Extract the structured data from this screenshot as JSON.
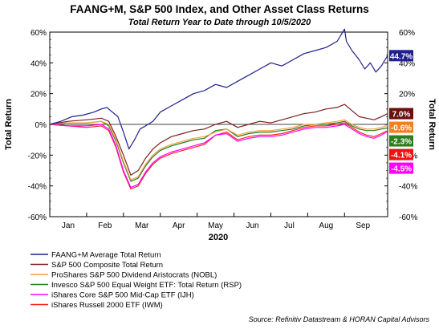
{
  "chart_data": {
    "type": "line",
    "title": "FAANG+M, S&P 500 Index, and Other Asset Class Returns",
    "subtitle": "Total Return Year to Date through 10/5/2020",
    "xlabel": "2020",
    "ylabel_left": "Total Return",
    "ylabel_right": "Total Return",
    "ylim": [
      -60,
      60
    ],
    "yticks": [
      "60%",
      "40%",
      "20%",
      "0%",
      "-20%",
      "-40%",
      "-60%"
    ],
    "yticks_right": [
      "60%",
      "40%",
      "20%",
      "0%",
      "-20%",
      "-40%",
      "-60%"
    ],
    "xlim": [
      0,
      9.17
    ],
    "x_months": [
      "Jan",
      "Feb",
      "Mar",
      "Apr",
      "May",
      "Jun",
      "Jul",
      "Aug",
      "Sep"
    ],
    "grid": false,
    "legend_position": "bottom-left",
    "source": "Source: Refinitiv Datastream & HORAN Capital Advisors",
    "series": [
      {
        "name": "FAANG+M Average Total Return",
        "color": "#1f1f8f",
        "end_label": "44.7%",
        "end_value": 44.7,
        "label_bg": "#1f1f8f",
        "x": [
          0,
          0.3,
          0.6,
          0.9,
          1.2,
          1.4,
          1.55,
          1.7,
          1.85,
          2.0,
          2.15,
          2.3,
          2.45,
          2.6,
          2.8,
          3.0,
          3.3,
          3.6,
          3.9,
          4.2,
          4.5,
          4.8,
          5.1,
          5.4,
          5.7,
          6.0,
          6.3,
          6.6,
          6.9,
          7.2,
          7.5,
          7.8,
          8.0,
          8.05,
          8.2,
          8.4,
          8.55,
          8.7,
          8.85,
          9.0,
          9.1,
          9.17
        ],
        "y": [
          0,
          2,
          5,
          6,
          8,
          10,
          11,
          8,
          5,
          -5,
          -16,
          -10,
          -3,
          -1,
          2,
          8,
          12,
          16,
          20,
          22,
          26,
          24,
          28,
          32,
          36,
          40,
          38,
          42,
          46,
          48,
          50,
          54,
          62,
          54,
          48,
          42,
          36,
          40,
          34,
          38,
          42,
          44.7
        ]
      },
      {
        "name": "S&P 500 Composite Total Return",
        "color": "#7b1f1f",
        "end_label": "7.0%",
        "end_value": 7.0,
        "label_bg": "#6b0f0f",
        "x": [
          0,
          0.5,
          1.0,
          1.4,
          1.6,
          1.8,
          2.0,
          2.2,
          2.4,
          2.6,
          2.8,
          3.0,
          3.3,
          3.6,
          3.9,
          4.2,
          4.5,
          4.8,
          5.1,
          5.4,
          5.7,
          6.0,
          6.3,
          6.6,
          6.9,
          7.2,
          7.5,
          7.8,
          8.0,
          8.2,
          8.4,
          8.6,
          8.8,
          9.0,
          9.17
        ],
        "y": [
          0,
          2,
          3,
          4,
          2,
          -8,
          -20,
          -33,
          -30,
          -22,
          -16,
          -12,
          -8,
          -6,
          -4,
          -3,
          0,
          2,
          -2,
          0,
          2,
          1,
          3,
          5,
          7,
          8,
          10,
          11,
          13,
          9,
          5,
          4,
          3,
          5,
          7.0
        ]
      },
      {
        "name": "ProShares S&P 500 Dividend Aristocrats (NOBL)",
        "color": "#f4a040",
        "end_label": "-0.6%",
        "end_value": -0.6,
        "label_bg": "#f08020",
        "x": [
          0,
          0.5,
          1.0,
          1.4,
          1.6,
          1.8,
          2.0,
          2.2,
          2.4,
          2.6,
          2.8,
          3.0,
          3.3,
          3.6,
          3.9,
          4.2,
          4.5,
          4.8,
          5.1,
          5.4,
          5.7,
          6.0,
          6.3,
          6.6,
          6.9,
          7.2,
          7.5,
          7.8,
          8.0,
          8.2,
          8.4,
          8.6,
          8.8,
          9.0,
          9.17
        ],
        "y": [
          0,
          1,
          1,
          2,
          0,
          -10,
          -24,
          -36,
          -34,
          -26,
          -20,
          -16,
          -13,
          -11,
          -9,
          -8,
          -5,
          -3,
          -7,
          -5,
          -4,
          -4,
          -3,
          -2,
          0,
          0,
          1,
          2,
          3,
          0,
          -2,
          -3,
          -3,
          -2,
          -0.6
        ]
      },
      {
        "name": "Invesco S&P 500 Equal Weight ETF: Total Return (RSP)",
        "color": "#1f7a1f",
        "end_label": "-2.3%",
        "end_value": -2.3,
        "label_bg": "#2e7d1e",
        "x": [
          0,
          0.5,
          1.0,
          1.4,
          1.6,
          1.8,
          2.0,
          2.2,
          2.4,
          2.6,
          2.8,
          3.0,
          3.3,
          3.6,
          3.9,
          4.2,
          4.5,
          4.8,
          5.1,
          5.4,
          5.7,
          6.0,
          6.3,
          6.6,
          6.9,
          7.2,
          7.5,
          7.8,
          8.0,
          8.2,
          8.4,
          8.6,
          8.8,
          9.0,
          9.17
        ],
        "y": [
          0,
          1,
          1,
          2,
          -1,
          -11,
          -25,
          -37,
          -35,
          -27,
          -21,
          -17,
          -14,
          -12,
          -10,
          -9,
          -4,
          -3,
          -8,
          -6,
          -5,
          -5,
          -4,
          -3,
          -1,
          0,
          0,
          1,
          2,
          -1,
          -3,
          -4,
          -4,
          -3,
          -2.3
        ]
      },
      {
        "name": "iShares Core S&P 500 Mid-Cap ETF (IJH)",
        "color": "#ff00ff",
        "end_label": "-4.5%",
        "end_value": -4.5,
        "label_bg": "#ff00ff",
        "x": [
          0,
          0.5,
          1.0,
          1.4,
          1.6,
          1.8,
          2.0,
          2.2,
          2.4,
          2.6,
          2.8,
          3.0,
          3.3,
          3.6,
          3.9,
          4.2,
          4.5,
          4.8,
          5.1,
          5.4,
          5.7,
          6.0,
          6.3,
          6.6,
          6.9,
          7.2,
          7.5,
          7.8,
          8.0,
          8.2,
          8.4,
          8.6,
          8.8,
          9.0,
          9.17
        ],
        "y": [
          0,
          -1,
          -1,
          0,
          -3,
          -14,
          -30,
          -41,
          -39,
          -31,
          -25,
          -21,
          -18,
          -16,
          -14,
          -12,
          -7,
          -6,
          -11,
          -9,
          -8,
          -8,
          -7,
          -5,
          -3,
          -2,
          -2,
          -1,
          0,
          -3,
          -6,
          -8,
          -9,
          -7,
          -4.5
        ]
      },
      {
        "name": "iShares Russell 2000 ETF (IWM)",
        "color": "#ff2020",
        "end_label": "-4.1%",
        "end_value": -4.1,
        "label_bg": "#ee1111",
        "x": [
          0,
          0.5,
          1.0,
          1.4,
          1.6,
          1.8,
          2.0,
          2.2,
          2.4,
          2.6,
          2.8,
          3.0,
          3.3,
          3.6,
          3.9,
          4.2,
          4.5,
          4.8,
          5.1,
          5.4,
          5.7,
          6.0,
          6.3,
          6.6,
          6.9,
          7.2,
          7.5,
          7.8,
          8.0,
          8.2,
          8.4,
          8.6,
          8.8,
          9.0,
          9.17
        ],
        "y": [
          0,
          -1,
          -2,
          -1,
          -4,
          -15,
          -31,
          -42,
          -40,
          -32,
          -26,
          -22,
          -19,
          -17,
          -15,
          -13,
          -7,
          -5,
          -10,
          -8,
          -7,
          -7,
          -6,
          -4,
          -2,
          -1,
          -1,
          0,
          1,
          -2,
          -5,
          -7,
          -8,
          -6,
          -4.1
        ]
      }
    ]
  }
}
